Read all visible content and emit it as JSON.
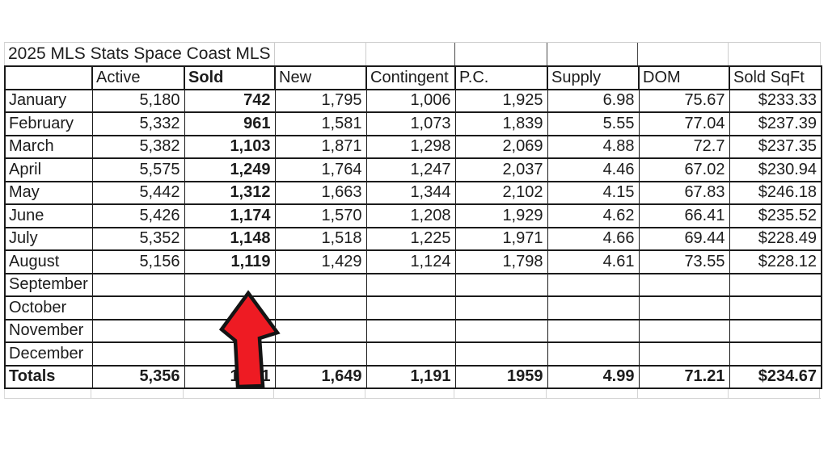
{
  "table": {
    "title": "2025 MLS Stats Space Coast MLS",
    "headers": [
      "",
      "Active",
      "Sold",
      "New",
      "Contingent",
      "P.C.",
      "Supply",
      "DOM",
      "Sold SqFt"
    ],
    "rows": [
      {
        "label": "January",
        "values": [
          "5,180",
          "742",
          "1,795",
          "1,006",
          "1,925",
          "6.98",
          "75.67",
          "$233.33"
        ]
      },
      {
        "label": "February",
        "values": [
          "5,332",
          "961",
          "1,581",
          "1,073",
          "1,839",
          "5.55",
          "77.04",
          "$237.39"
        ]
      },
      {
        "label": "March",
        "values": [
          "5,382",
          "1,103",
          "1,871",
          "1,298",
          "2,069",
          "4.88",
          "72.7",
          "$237.35"
        ]
      },
      {
        "label": "April",
        "values": [
          "5,575",
          "1,249",
          "1,764",
          "1,247",
          "2,037",
          "4.46",
          "67.02",
          "$230.94"
        ]
      },
      {
        "label": "May",
        "values": [
          "5,442",
          "1,312",
          "1,663",
          "1,344",
          "2,102",
          "4.15",
          "67.83",
          "$246.18"
        ]
      },
      {
        "label": "June",
        "values": [
          "5,426",
          "1,174",
          "1,570",
          "1,208",
          "1,929",
          "4.62",
          "66.41",
          "$235.52"
        ]
      },
      {
        "label": "July",
        "values": [
          "5,352",
          "1,148",
          "1,518",
          "1,225",
          "1,971",
          "4.66",
          "69.44",
          "$228.49"
        ]
      },
      {
        "label": "August",
        "values": [
          "5,156",
          "1,119",
          "1,429",
          "1,124",
          "1,798",
          "4.61",
          "73.55",
          "$228.12"
        ]
      },
      {
        "label": "September",
        "values": [
          "",
          "",
          "",
          "",
          "",
          "",
          "",
          ""
        ]
      },
      {
        "label": "October",
        "values": [
          "",
          "",
          "",
          "",
          "",
          "",
          "",
          ""
        ]
      },
      {
        "label": "November",
        "values": [
          "",
          "",
          "",
          "",
          "",
          "",
          "",
          ""
        ]
      },
      {
        "label": "December",
        "values": [
          "",
          "",
          "",
          "",
          "",
          "",
          "",
          ""
        ]
      }
    ],
    "totals": {
      "label": "Totals",
      "values": [
        "5,356",
        "1,101",
        "1,649",
        "1,191",
        "1959",
        "4.99",
        "71.21",
        "$234.67"
      ]
    }
  },
  "arrow": {
    "fill": "#ee1b23",
    "outline": "#141414"
  },
  "colors": {
    "grid_dark": "#1b1b1b",
    "grid_light": "#d4d4d4",
    "text": "#1c1c1c"
  }
}
